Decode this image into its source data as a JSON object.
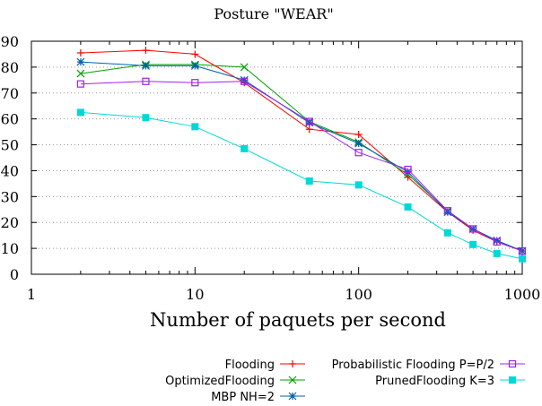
{
  "chart_data": {
    "type": "line",
    "title": "Posture \"WEAR\"",
    "xlabel": "Number of paquets per second",
    "ylabel": "",
    "x_scale": "log",
    "xlim": [
      1,
      1000
    ],
    "ylim": [
      0,
      90
    ],
    "x_ticks": [
      1,
      10,
      100,
      1000
    ],
    "x_tick_labels": [
      "1",
      "10",
      "100",
      "1000"
    ],
    "y_ticks": [
      0,
      10,
      20,
      30,
      40,
      50,
      60,
      70,
      80,
      90
    ],
    "y_tick_labels": [
      "0",
      "10",
      "20",
      "30",
      "40",
      "50",
      "60",
      "70",
      "80",
      "90"
    ],
    "grid": "horizontal dotted",
    "legend_position": "bottom",
    "x": [
      2,
      5,
      10,
      20,
      50,
      100,
      200,
      350,
      500,
      700,
      1000
    ],
    "series": [
      {
        "name": "Flooding",
        "marker": "plus",
        "color": "#ff0000",
        "values": [
          85.5,
          86.5,
          85,
          74,
          56,
          54,
          37.5,
          24,
          17,
          12.5,
          9
        ]
      },
      {
        "name": "OptimizedFlooding",
        "marker": "cross",
        "color": "#00a000",
        "values": [
          77.5,
          81,
          81,
          80,
          59,
          51,
          38.5,
          24.5,
          17.5,
          13,
          9
        ]
      },
      {
        "name": "MBP NH=2",
        "marker": "star",
        "color": "#0060ad",
        "values": [
          82,
          80.5,
          80.5,
          75,
          58.5,
          50.5,
          39.5,
          24,
          17.5,
          13,
          9
        ]
      },
      {
        "name": "Probabilistic Flooding P=P/2",
        "marker": "open-square",
        "color": "#a020f0",
        "values": [
          73.5,
          74.5,
          74,
          74.5,
          59,
          47,
          40.5,
          24.5,
          17.5,
          12.5,
          9
        ]
      },
      {
        "name": "PrunedFlooding K=3",
        "marker": "filled-square",
        "color": "#00d8d8",
        "values": [
          62.5,
          60.5,
          57,
          48.5,
          36,
          34.5,
          26,
          16,
          11.5,
          8,
          6
        ]
      }
    ]
  }
}
